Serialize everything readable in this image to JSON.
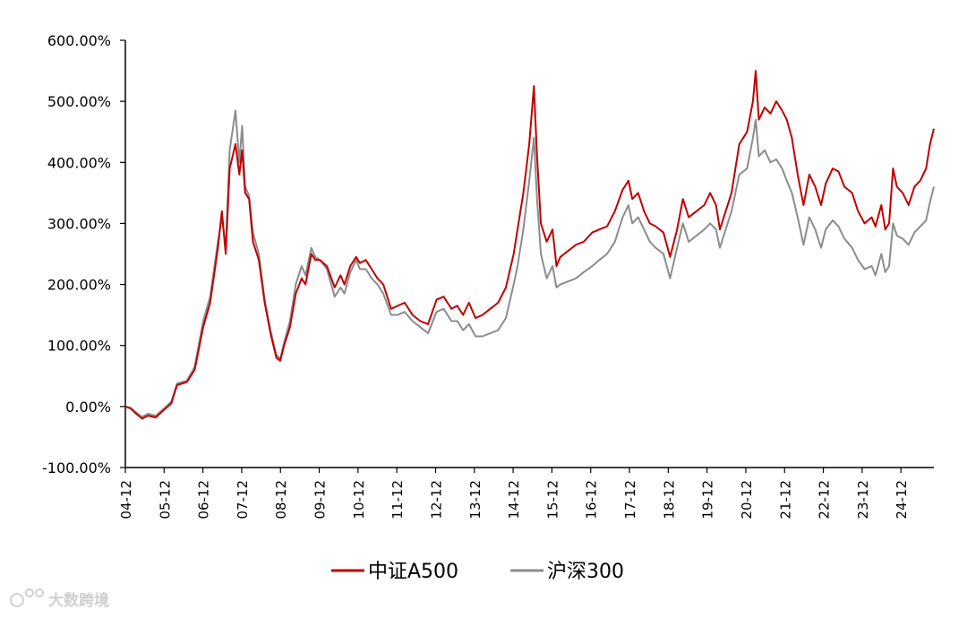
{
  "chart_data": {
    "type": "line",
    "title": "",
    "xlabel": "",
    "ylabel": "",
    "ylim": [
      -100,
      600
    ],
    "y_tick_labels": [
      "600.00%",
      "500.00%",
      "400.00%",
      "300.00%",
      "200.00%",
      "100.00%",
      "0.00%",
      "-100.00%"
    ],
    "y_tick_values": [
      600,
      500,
      400,
      300,
      200,
      100,
      0,
      -100
    ],
    "x_tick_labels": [
      "04-12",
      "05-12",
      "06-12",
      "07-12",
      "08-12",
      "09-12",
      "10-12",
      "11-12",
      "12-12",
      "13-12",
      "14-12",
      "15-12",
      "16-12",
      "17-12",
      "18-12",
      "19-12",
      "20-12",
      "21-12",
      "22-12",
      "23-12",
      "24-12"
    ],
    "x_range": [
      2004.92,
      2025.7
    ],
    "grid": false,
    "legend_position": "bottom",
    "series": [
      {
        "name": "中证A500",
        "color": "#c00000",
        "points": [
          [
            2004.92,
            0
          ],
          [
            2005.05,
            -3
          ],
          [
            2005.2,
            -12
          ],
          [
            2005.35,
            -20
          ],
          [
            2005.5,
            -15
          ],
          [
            2005.7,
            -18
          ],
          [
            2005.92,
            -5
          ],
          [
            2006.1,
            5
          ],
          [
            2006.25,
            35
          ],
          [
            2006.5,
            40
          ],
          [
            2006.7,
            60
          ],
          [
            2006.92,
            130
          ],
          [
            2007.1,
            170
          ],
          [
            2007.3,
            260
          ],
          [
            2007.4,
            320
          ],
          [
            2007.5,
            250
          ],
          [
            2007.6,
            390
          ],
          [
            2007.75,
            430
          ],
          [
            2007.85,
            380
          ],
          [
            2007.92,
            420
          ],
          [
            2008.0,
            350
          ],
          [
            2008.1,
            340
          ],
          [
            2008.2,
            270
          ],
          [
            2008.35,
            240
          ],
          [
            2008.5,
            170
          ],
          [
            2008.65,
            120
          ],
          [
            2008.8,
            80
          ],
          [
            2008.9,
            75
          ],
          [
            2009.0,
            100
          ],
          [
            2009.15,
            130
          ],
          [
            2009.3,
            185
          ],
          [
            2009.45,
            210
          ],
          [
            2009.55,
            200
          ],
          [
            2009.7,
            250
          ],
          [
            2009.8,
            240
          ],
          [
            2009.92,
            240
          ],
          [
            2010.1,
            230
          ],
          [
            2010.3,
            195
          ],
          [
            2010.45,
            215
          ],
          [
            2010.55,
            200
          ],
          [
            2010.7,
            230
          ],
          [
            2010.85,
            245
          ],
          [
            2010.95,
            235
          ],
          [
            2011.1,
            240
          ],
          [
            2011.25,
            225
          ],
          [
            2011.4,
            210
          ],
          [
            2011.55,
            200
          ],
          [
            2011.75,
            160
          ],
          [
            2011.92,
            165
          ],
          [
            2012.1,
            170
          ],
          [
            2012.3,
            150
          ],
          [
            2012.5,
            140
          ],
          [
            2012.7,
            135
          ],
          [
            2012.92,
            175
          ],
          [
            2013.1,
            180
          ],
          [
            2013.3,
            160
          ],
          [
            2013.45,
            165
          ],
          [
            2013.6,
            150
          ],
          [
            2013.75,
            170
          ],
          [
            2013.92,
            145
          ],
          [
            2014.1,
            150
          ],
          [
            2014.3,
            160
          ],
          [
            2014.5,
            170
          ],
          [
            2014.7,
            195
          ],
          [
            2014.9,
            250
          ],
          [
            2015.0,
            290
          ],
          [
            2015.15,
            350
          ],
          [
            2015.3,
            430
          ],
          [
            2015.42,
            525
          ],
          [
            2015.5,
            410
          ],
          [
            2015.6,
            300
          ],
          [
            2015.75,
            270
          ],
          [
            2015.9,
            290
          ],
          [
            2016.0,
            230
          ],
          [
            2016.1,
            245
          ],
          [
            2016.3,
            255
          ],
          [
            2016.5,
            265
          ],
          [
            2016.7,
            270
          ],
          [
            2016.92,
            285
          ],
          [
            2017.1,
            290
          ],
          [
            2017.3,
            295
          ],
          [
            2017.5,
            320
          ],
          [
            2017.7,
            355
          ],
          [
            2017.85,
            370
          ],
          [
            2017.95,
            340
          ],
          [
            2018.1,
            350
          ],
          [
            2018.25,
            320
          ],
          [
            2018.4,
            300
          ],
          [
            2018.55,
            295
          ],
          [
            2018.75,
            285
          ],
          [
            2018.92,
            245
          ],
          [
            2019.1,
            290
          ],
          [
            2019.25,
            340
          ],
          [
            2019.4,
            310
          ],
          [
            2019.6,
            320
          ],
          [
            2019.8,
            330
          ],
          [
            2019.95,
            350
          ],
          [
            2020.1,
            330
          ],
          [
            2020.2,
            290
          ],
          [
            2020.35,
            320
          ],
          [
            2020.5,
            350
          ],
          [
            2020.7,
            430
          ],
          [
            2020.9,
            450
          ],
          [
            2021.05,
            500
          ],
          [
            2021.12,
            550
          ],
          [
            2021.2,
            470
          ],
          [
            2021.35,
            490
          ],
          [
            2021.5,
            480
          ],
          [
            2021.65,
            500
          ],
          [
            2021.8,
            485
          ],
          [
            2021.92,
            470
          ],
          [
            2022.05,
            440
          ],
          [
            2022.2,
            380
          ],
          [
            2022.35,
            330
          ],
          [
            2022.5,
            380
          ],
          [
            2022.65,
            360
          ],
          [
            2022.8,
            330
          ],
          [
            2022.92,
            365
          ],
          [
            2023.1,
            390
          ],
          [
            2023.25,
            385
          ],
          [
            2023.4,
            360
          ],
          [
            2023.6,
            350
          ],
          [
            2023.75,
            320
          ],
          [
            2023.92,
            300
          ],
          [
            2024.1,
            310
          ],
          [
            2024.2,
            295
          ],
          [
            2024.35,
            330
          ],
          [
            2024.45,
            290
          ],
          [
            2024.55,
            300
          ],
          [
            2024.65,
            390
          ],
          [
            2024.75,
            360
          ],
          [
            2024.9,
            350
          ],
          [
            2025.05,
            330
          ],
          [
            2025.2,
            360
          ],
          [
            2025.35,
            370
          ],
          [
            2025.5,
            390
          ],
          [
            2025.6,
            430
          ],
          [
            2025.7,
            455
          ]
        ]
      },
      {
        "name": "沪深300",
        "color": "#8c8c8c",
        "points": [
          [
            2004.92,
            0
          ],
          [
            2005.05,
            -2
          ],
          [
            2005.2,
            -10
          ],
          [
            2005.35,
            -17
          ],
          [
            2005.5,
            -12
          ],
          [
            2005.7,
            -15
          ],
          [
            2005.92,
            -3
          ],
          [
            2006.1,
            8
          ],
          [
            2006.25,
            38
          ],
          [
            2006.5,
            42
          ],
          [
            2006.7,
            65
          ],
          [
            2006.92,
            140
          ],
          [
            2007.1,
            180
          ],
          [
            2007.3,
            270
          ],
          [
            2007.4,
            310
          ],
          [
            2007.5,
            260
          ],
          [
            2007.6,
            420
          ],
          [
            2007.75,
            485
          ],
          [
            2007.85,
            400
          ],
          [
            2007.92,
            460
          ],
          [
            2008.0,
            360
          ],
          [
            2008.1,
            345
          ],
          [
            2008.2,
            285
          ],
          [
            2008.35,
            250
          ],
          [
            2008.5,
            175
          ],
          [
            2008.65,
            125
          ],
          [
            2008.8,
            85
          ],
          [
            2008.9,
            78
          ],
          [
            2009.0,
            105
          ],
          [
            2009.15,
            140
          ],
          [
            2009.3,
            200
          ],
          [
            2009.45,
            230
          ],
          [
            2009.55,
            215
          ],
          [
            2009.7,
            260
          ],
          [
            2009.8,
            245
          ],
          [
            2009.92,
            240
          ],
          [
            2010.1,
            225
          ],
          [
            2010.3,
            180
          ],
          [
            2010.45,
            195
          ],
          [
            2010.55,
            185
          ],
          [
            2010.7,
            220
          ],
          [
            2010.85,
            240
          ],
          [
            2010.95,
            225
          ],
          [
            2011.1,
            225
          ],
          [
            2011.25,
            210
          ],
          [
            2011.4,
            200
          ],
          [
            2011.55,
            185
          ],
          [
            2011.75,
            150
          ],
          [
            2011.92,
            150
          ],
          [
            2012.1,
            155
          ],
          [
            2012.3,
            140
          ],
          [
            2012.5,
            130
          ],
          [
            2012.7,
            120
          ],
          [
            2012.92,
            155
          ],
          [
            2013.1,
            160
          ],
          [
            2013.3,
            140
          ],
          [
            2013.45,
            140
          ],
          [
            2013.6,
            125
          ],
          [
            2013.75,
            135
          ],
          [
            2013.92,
            115
          ],
          [
            2014.1,
            115
          ],
          [
            2014.3,
            120
          ],
          [
            2014.5,
            125
          ],
          [
            2014.7,
            145
          ],
          [
            2014.9,
            200
          ],
          [
            2015.0,
            230
          ],
          [
            2015.15,
            290
          ],
          [
            2015.3,
            370
          ],
          [
            2015.42,
            440
          ],
          [
            2015.5,
            340
          ],
          [
            2015.6,
            250
          ],
          [
            2015.75,
            210
          ],
          [
            2015.9,
            230
          ],
          [
            2016.0,
            195
          ],
          [
            2016.1,
            200
          ],
          [
            2016.3,
            205
          ],
          [
            2016.5,
            210
          ],
          [
            2016.7,
            220
          ],
          [
            2016.92,
            230
          ],
          [
            2017.1,
            240
          ],
          [
            2017.3,
            250
          ],
          [
            2017.5,
            270
          ],
          [
            2017.7,
            310
          ],
          [
            2017.85,
            330
          ],
          [
            2017.95,
            300
          ],
          [
            2018.1,
            310
          ],
          [
            2018.25,
            290
          ],
          [
            2018.4,
            270
          ],
          [
            2018.55,
            260
          ],
          [
            2018.75,
            250
          ],
          [
            2018.92,
            210
          ],
          [
            2019.1,
            260
          ],
          [
            2019.25,
            300
          ],
          [
            2019.4,
            270
          ],
          [
            2019.6,
            280
          ],
          [
            2019.8,
            290
          ],
          [
            2019.95,
            300
          ],
          [
            2020.1,
            290
          ],
          [
            2020.2,
            260
          ],
          [
            2020.35,
            290
          ],
          [
            2020.5,
            320
          ],
          [
            2020.7,
            380
          ],
          [
            2020.9,
            390
          ],
          [
            2021.05,
            440
          ],
          [
            2021.12,
            470
          ],
          [
            2021.2,
            410
          ],
          [
            2021.35,
            420
          ],
          [
            2021.5,
            400
          ],
          [
            2021.65,
            405
          ],
          [
            2021.8,
            390
          ],
          [
            2021.92,
            370
          ],
          [
            2022.05,
            350
          ],
          [
            2022.2,
            310
          ],
          [
            2022.35,
            265
          ],
          [
            2022.5,
            310
          ],
          [
            2022.65,
            290
          ],
          [
            2022.8,
            260
          ],
          [
            2022.92,
            290
          ],
          [
            2023.1,
            305
          ],
          [
            2023.25,
            295
          ],
          [
            2023.4,
            275
          ],
          [
            2023.6,
            260
          ],
          [
            2023.75,
            240
          ],
          [
            2023.92,
            225
          ],
          [
            2024.1,
            230
          ],
          [
            2024.2,
            215
          ],
          [
            2024.35,
            250
          ],
          [
            2024.45,
            220
          ],
          [
            2024.55,
            230
          ],
          [
            2024.65,
            300
          ],
          [
            2024.75,
            280
          ],
          [
            2024.9,
            275
          ],
          [
            2025.05,
            265
          ],
          [
            2025.2,
            285
          ],
          [
            2025.35,
            295
          ],
          [
            2025.5,
            305
          ],
          [
            2025.6,
            335
          ],
          [
            2025.7,
            360
          ]
        ]
      }
    ]
  },
  "watermark": {
    "text": "大数跨境"
  }
}
